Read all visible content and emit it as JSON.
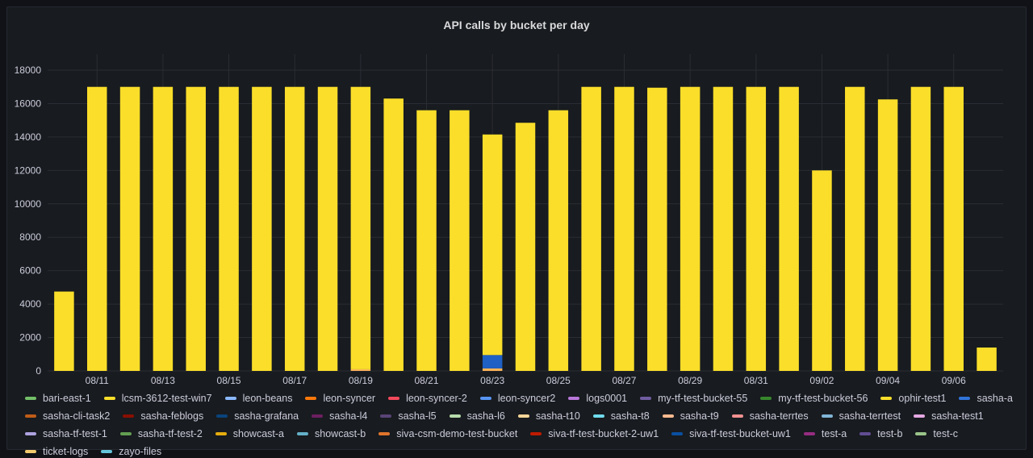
{
  "panel": {
    "title": "API calls by bucket per day"
  },
  "chart_data": {
    "type": "bar",
    "stacked": true,
    "title": "API calls by bucket per day",
    "ylim": [
      0,
      18000
    ],
    "yticks": [
      0,
      2000,
      4000,
      6000,
      8000,
      10000,
      12000,
      14000,
      16000,
      18000
    ],
    "categories": [
      "08/10",
      "08/11",
      "08/12",
      "08/13",
      "08/14",
      "08/15",
      "08/16",
      "08/17",
      "08/18",
      "08/19",
      "08/20",
      "08/21",
      "08/22",
      "08/23",
      "08/24",
      "08/25",
      "08/26",
      "08/27",
      "08/28",
      "08/29",
      "08/30",
      "08/31",
      "09/01",
      "09/02",
      "09/03",
      "09/04",
      "09/05",
      "09/06",
      "09/07"
    ],
    "xtick_labels": [
      "08/11",
      "08/13",
      "08/15",
      "08/17",
      "08/19",
      "08/21",
      "08/23",
      "08/25",
      "08/27",
      "08/29",
      "08/31",
      "09/02",
      "09/04",
      "09/06"
    ],
    "series": [
      {
        "name": "sasha-t9",
        "color": "#ffb357",
        "values": [
          0,
          0,
          0,
          0,
          0,
          0,
          0,
          0,
          0,
          100,
          0,
          0,
          0,
          150,
          0,
          0,
          0,
          0,
          0,
          0,
          0,
          0,
          0,
          0,
          0,
          0,
          0,
          0,
          0
        ]
      },
      {
        "name": "sasha-grafana",
        "color": "#1f60c4",
        "values": [
          0,
          0,
          0,
          0,
          0,
          0,
          0,
          0,
          0,
          0,
          0,
          0,
          0,
          800,
          0,
          0,
          0,
          0,
          0,
          0,
          0,
          0,
          0,
          0,
          0,
          0,
          0,
          0,
          0
        ]
      },
      {
        "name": "lcsm-3612-test-win7",
        "color": "#fade2a",
        "values": [
          4750,
          17000,
          17000,
          17000,
          17000,
          17000,
          17000,
          17000,
          17000,
          16900,
          16300,
          15600,
          15600,
          13200,
          14850,
          15600,
          17000,
          17000,
          16950,
          17000,
          17000,
          17000,
          17000,
          12000,
          17000,
          16250,
          17000,
          17000,
          1400
        ]
      }
    ],
    "legend": [
      "bari-east-1",
      "lcsm-3612-test-win7",
      "leon-beans",
      "leon-syncer",
      "leon-syncer-2",
      "leon-syncer2",
      "logs0001",
      "my-tf-test-bucket-55",
      "my-tf-test-bucket-56",
      "ophir-test1",
      "sasha-a",
      "sasha-cli-task2",
      "sasha-feblogs",
      "sasha-grafana",
      "sasha-l4",
      "sasha-l5",
      "sasha-l6",
      "sasha-t10",
      "sasha-t8",
      "sasha-t9",
      "sasha-terrtes",
      "sasha-terrtest",
      "sasha-test1",
      "sasha-tf-test-1",
      "sasha-tf-test-2",
      "showcast-a",
      "showcast-b",
      "siva-csm-demo-test-bucket",
      "siva-tf-test-bucket-2-uw1",
      "siva-tf-test-bucket-uw1",
      "test-a",
      "test-b",
      "test-c",
      "ticket-logs",
      "zayo-files"
    ],
    "legend_colors": [
      "#73bf69",
      "#fade2a",
      "#8ab8ff",
      "#ff780a",
      "#f2495c",
      "#5794f2",
      "#b877d9",
      "#705da0",
      "#37872d",
      "#fade2a",
      "#3274d9",
      "#c15c17",
      "#890f02",
      "#0a437c",
      "#6d1f62",
      "#584477",
      "#b7dbab",
      "#f4d598",
      "#70dbed",
      "#f9ba8f",
      "#f29191",
      "#82b5d8",
      "#e5a8e2",
      "#aea2e0",
      "#629e51",
      "#e5ac0e",
      "#64b0c8",
      "#e0752d",
      "#bf1b00",
      "#0a50a1",
      "#962d82",
      "#614d93",
      "#9ac48a",
      "#f2c96d",
      "#65c5db"
    ],
    "grid": true,
    "legend_position": "bottom"
  }
}
